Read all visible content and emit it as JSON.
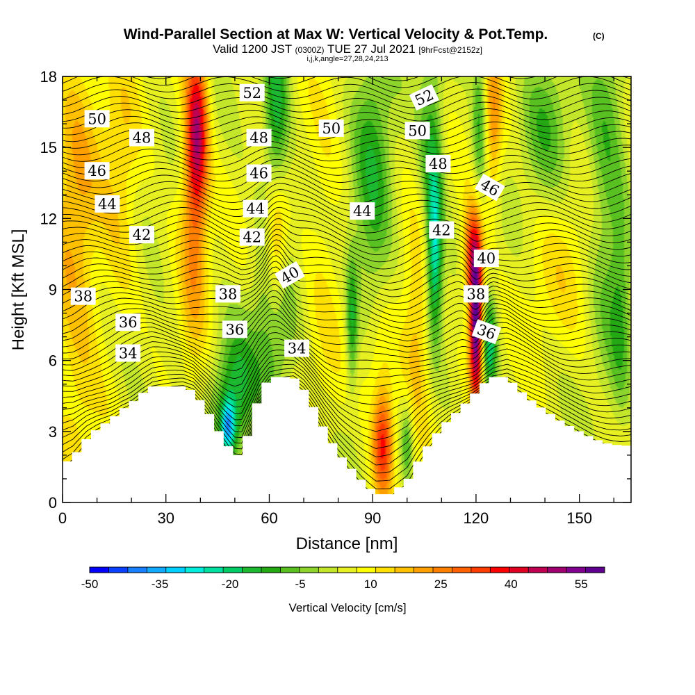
{
  "header": {
    "title": "Wind-Parallel Section at Max W: Vertical Velocity & Pot.Temp.",
    "title_mark": "(C)",
    "valid_prefix": "Valid 1200 JST",
    "valid_utc": "(0300Z)",
    "valid_date": "TUE 27 Jul 2021",
    "forecast": "[9hrFcst@2152z]",
    "indices": "i,j,k,angle=27,28,24,213"
  },
  "colorbar": {
    "title": "Vertical Velocity [cm/s]",
    "tick_labels": [
      "-50",
      "-35",
      "-20",
      "-5",
      "10",
      "25",
      "40",
      "55"
    ],
    "colors": [
      "#0000ff",
      "#0a40ff",
      "#1a7fff",
      "#12aaff",
      "#00d0ff",
      "#00eedd",
      "#00e0a0",
      "#00cc66",
      "#1cb830",
      "#24a814",
      "#58c020",
      "#8cd42c",
      "#c4e62a",
      "#e6f020",
      "#ffff00",
      "#ffe000",
      "#ffc000",
      "#ffa000",
      "#ff8000",
      "#ff6000",
      "#ff3c00",
      "#ff0000",
      "#e00020",
      "#c00050",
      "#a00070",
      "#800090",
      "#600090"
    ]
  },
  "chart_data": {
    "type": "heatmap",
    "title": "Wind-Parallel Section at Max W: Vertical Velocity & Pot.Temp.",
    "xlabel": "Distance [nm]",
    "ylabel": "Height [Kft MSL]",
    "xlim": [
      0,
      165
    ],
    "ylim": [
      0,
      18
    ],
    "x_ticks": [
      0,
      30,
      60,
      90,
      120,
      150
    ],
    "y_ticks": [
      0,
      3,
      6,
      9,
      12,
      15,
      18
    ],
    "x_tick_labels": [
      "0",
      "30",
      "60",
      "90",
      "120",
      "150"
    ],
    "y_tick_labels": [
      "0",
      "3",
      "6",
      "9",
      "12",
      "15",
      "18"
    ],
    "field": "Vertical Velocity",
    "field_units": "cm/s",
    "field_range": [
      -50,
      60
    ],
    "background_w": 5,
    "w_features": [
      {
        "x": 39,
        "y": 15.5,
        "sx": 2.2,
        "sy": 2.5,
        "amp": 35
      },
      {
        "x": 38,
        "y": 11.5,
        "sx": 3,
        "sy": 5,
        "amp": 14
      },
      {
        "x": 4,
        "y": 11,
        "sx": 5,
        "sy": 7,
        "amp": 14
      },
      {
        "x": 17,
        "y": 13,
        "sx": 4,
        "sy": 4,
        "amp": 10
      },
      {
        "x": 62,
        "y": 11,
        "sx": 2.2,
        "sy": 2.2,
        "amp": 22
      },
      {
        "x": 61,
        "y": 7,
        "sx": 4,
        "sy": 3,
        "amp": -14
      },
      {
        "x": 50,
        "y": 4.5,
        "sx": 4,
        "sy": 2,
        "amp": -20
      },
      {
        "x": 48,
        "y": 3.2,
        "sx": 1.5,
        "sy": 0.8,
        "amp": -30
      },
      {
        "x": 62,
        "y": 16,
        "sx": 2.5,
        "sy": 3,
        "amp": -22
      },
      {
        "x": 90,
        "y": 13,
        "sx": 4,
        "sy": 5,
        "amp": -16
      },
      {
        "x": 84,
        "y": 7.5,
        "sx": 1.2,
        "sy": 2,
        "amp": -18
      },
      {
        "x": 93,
        "y": 2.5,
        "sx": 2.2,
        "sy": 1.6,
        "amp": 33
      },
      {
        "x": 91,
        "y": 6,
        "sx": 4,
        "sy": 2,
        "amp": 10
      },
      {
        "x": 100,
        "y": 2.5,
        "sx": 1.2,
        "sy": 1.2,
        "amp": -14
      },
      {
        "x": 108,
        "y": 10.5,
        "sx": 1.6,
        "sy": 2.5,
        "amp": -30
      },
      {
        "x": 107,
        "y": 15,
        "sx": 2.5,
        "sy": 3,
        "amp": -15
      },
      {
        "x": 120,
        "y": 7.5,
        "sx": 1.3,
        "sy": 2.2,
        "amp": 55
      },
      {
        "x": 119,
        "y": 10.5,
        "sx": 2,
        "sy": 1.5,
        "amp": 30
      },
      {
        "x": 124,
        "y": 6.5,
        "sx": 1.5,
        "sy": 1.5,
        "amp": -25
      },
      {
        "x": 125,
        "y": 16,
        "sx": 1.8,
        "sy": 2.5,
        "amp": 16
      },
      {
        "x": 121,
        "y": 16,
        "sx": 1.5,
        "sy": 2.5,
        "amp": -15
      },
      {
        "x": 140,
        "y": 16,
        "sx": 5,
        "sy": 2.5,
        "amp": -12
      },
      {
        "x": 145,
        "y": 10,
        "sx": 8,
        "sy": 3,
        "amp": 6
      },
      {
        "x": 158,
        "y": 13,
        "sx": 4,
        "sy": 5,
        "amp": -14
      },
      {
        "x": 103,
        "y": 7,
        "sx": 3,
        "sy": 3,
        "amp": 14
      },
      {
        "x": 76,
        "y": 11,
        "sx": 4,
        "sy": 5,
        "amp": 6
      },
      {
        "x": 22,
        "y": 6,
        "sx": 6,
        "sy": 2,
        "amp": -4
      },
      {
        "x": 162,
        "y": 8,
        "sx": 2,
        "sy": 3,
        "amp": -10
      }
    ],
    "terrain": [
      {
        "x": 0,
        "y": 1.6
      },
      {
        "x": 3,
        "y": 1.9
      },
      {
        "x": 7,
        "y": 2.7
      },
      {
        "x": 10,
        "y": 3.1
      },
      {
        "x": 14,
        "y": 3.5
      },
      {
        "x": 17,
        "y": 3.9
      },
      {
        "x": 20,
        "y": 4.2
      },
      {
        "x": 23,
        "y": 4.6
      },
      {
        "x": 26,
        "y": 4.9
      },
      {
        "x": 30,
        "y": 4.9
      },
      {
        "x": 35,
        "y": 4.9
      },
      {
        "x": 38,
        "y": 4.7
      },
      {
        "x": 42,
        "y": 3.9
      },
      {
        "x": 45,
        "y": 3.1
      },
      {
        "x": 48,
        "y": 2.4
      },
      {
        "x": 50,
        "y": 2.0
      },
      {
        "x": 52,
        "y": 2.0
      },
      {
        "x": 54,
        "y": 3.0
      },
      {
        "x": 57,
        "y": 4.5
      },
      {
        "x": 60,
        "y": 5.3
      },
      {
        "x": 67,
        "y": 5.3
      },
      {
        "x": 70,
        "y": 4.8
      },
      {
        "x": 73,
        "y": 4.0
      },
      {
        "x": 76,
        "y": 3.1
      },
      {
        "x": 80,
        "y": 2.1
      },
      {
        "x": 84,
        "y": 1.4
      },
      {
        "x": 87,
        "y": 0.9
      },
      {
        "x": 91,
        "y": 0.35
      },
      {
        "x": 95,
        "y": 0.35
      },
      {
        "x": 100,
        "y": 0.9
      },
      {
        "x": 103,
        "y": 1.7
      },
      {
        "x": 106,
        "y": 2.4
      },
      {
        "x": 109,
        "y": 3.0
      },
      {
        "x": 112,
        "y": 3.5
      },
      {
        "x": 115,
        "y": 3.9
      },
      {
        "x": 119,
        "y": 4.5
      },
      {
        "x": 122,
        "y": 5.0
      },
      {
        "x": 125,
        "y": 5.3
      },
      {
        "x": 129,
        "y": 5.3
      },
      {
        "x": 133,
        "y": 4.7
      },
      {
        "x": 137,
        "y": 4.2
      },
      {
        "x": 141,
        "y": 3.8
      },
      {
        "x": 145,
        "y": 3.4
      },
      {
        "x": 150,
        "y": 3.0
      },
      {
        "x": 154,
        "y": 2.7
      },
      {
        "x": 158,
        "y": 2.5
      },
      {
        "x": 162,
        "y": 2.4
      },
      {
        "x": 165,
        "y": 2.4
      }
    ],
    "isentropes": {
      "field": "Potential Temperature",
      "levels_every": 1,
      "labels": [
        {
          "text": "50",
          "x": 10,
          "y": 16.2,
          "angle": 0
        },
        {
          "text": "48",
          "x": 23,
          "y": 15.4,
          "angle": 0
        },
        {
          "text": "46",
          "x": 10,
          "y": 14.0,
          "angle": 0
        },
        {
          "text": "44",
          "x": 13,
          "y": 12.6,
          "angle": 0
        },
        {
          "text": "42",
          "x": 23,
          "y": 11.3,
          "angle": 0
        },
        {
          "text": "38",
          "x": 6,
          "y": 8.7,
          "angle": 0
        },
        {
          "text": "36",
          "x": 19,
          "y": 7.6,
          "angle": 0
        },
        {
          "text": "34",
          "x": 19,
          "y": 6.3,
          "angle": 0
        },
        {
          "text": "52",
          "x": 55,
          "y": 17.3,
          "angle": 0
        },
        {
          "text": "48",
          "x": 57,
          "y": 15.4,
          "angle": 0
        },
        {
          "text": "46",
          "x": 57,
          "y": 13.9,
          "angle": 0
        },
        {
          "text": "44",
          "x": 56,
          "y": 12.4,
          "angle": 0
        },
        {
          "text": "42",
          "x": 55,
          "y": 11.2,
          "angle": 0
        },
        {
          "text": "40",
          "x": 66,
          "y": 9.6,
          "angle": -30
        },
        {
          "text": "38",
          "x": 48,
          "y": 8.8,
          "angle": 0
        },
        {
          "text": "36",
          "x": 50,
          "y": 7.3,
          "angle": 0
        },
        {
          "text": "34",
          "x": 68,
          "y": 6.5,
          "angle": 0
        },
        {
          "text": "50",
          "x": 78,
          "y": 15.8,
          "angle": 0
        },
        {
          "text": "44",
          "x": 87,
          "y": 12.3,
          "angle": 0
        },
        {
          "text": "52",
          "x": 105,
          "y": 17.1,
          "angle": -25
        },
        {
          "text": "50",
          "x": 103,
          "y": 15.7,
          "angle": 0
        },
        {
          "text": "48",
          "x": 109,
          "y": 14.3,
          "angle": 0
        },
        {
          "text": "46",
          "x": 124,
          "y": 13.3,
          "angle": 30
        },
        {
          "text": "42",
          "x": 110,
          "y": 11.5,
          "angle": 0
        },
        {
          "text": "40",
          "x": 123,
          "y": 10.3,
          "angle": 0
        },
        {
          "text": "38",
          "x": 120,
          "y": 8.8,
          "angle": 0
        },
        {
          "text": "36",
          "x": 123,
          "y": 7.2,
          "angle": 20
        }
      ]
    }
  }
}
